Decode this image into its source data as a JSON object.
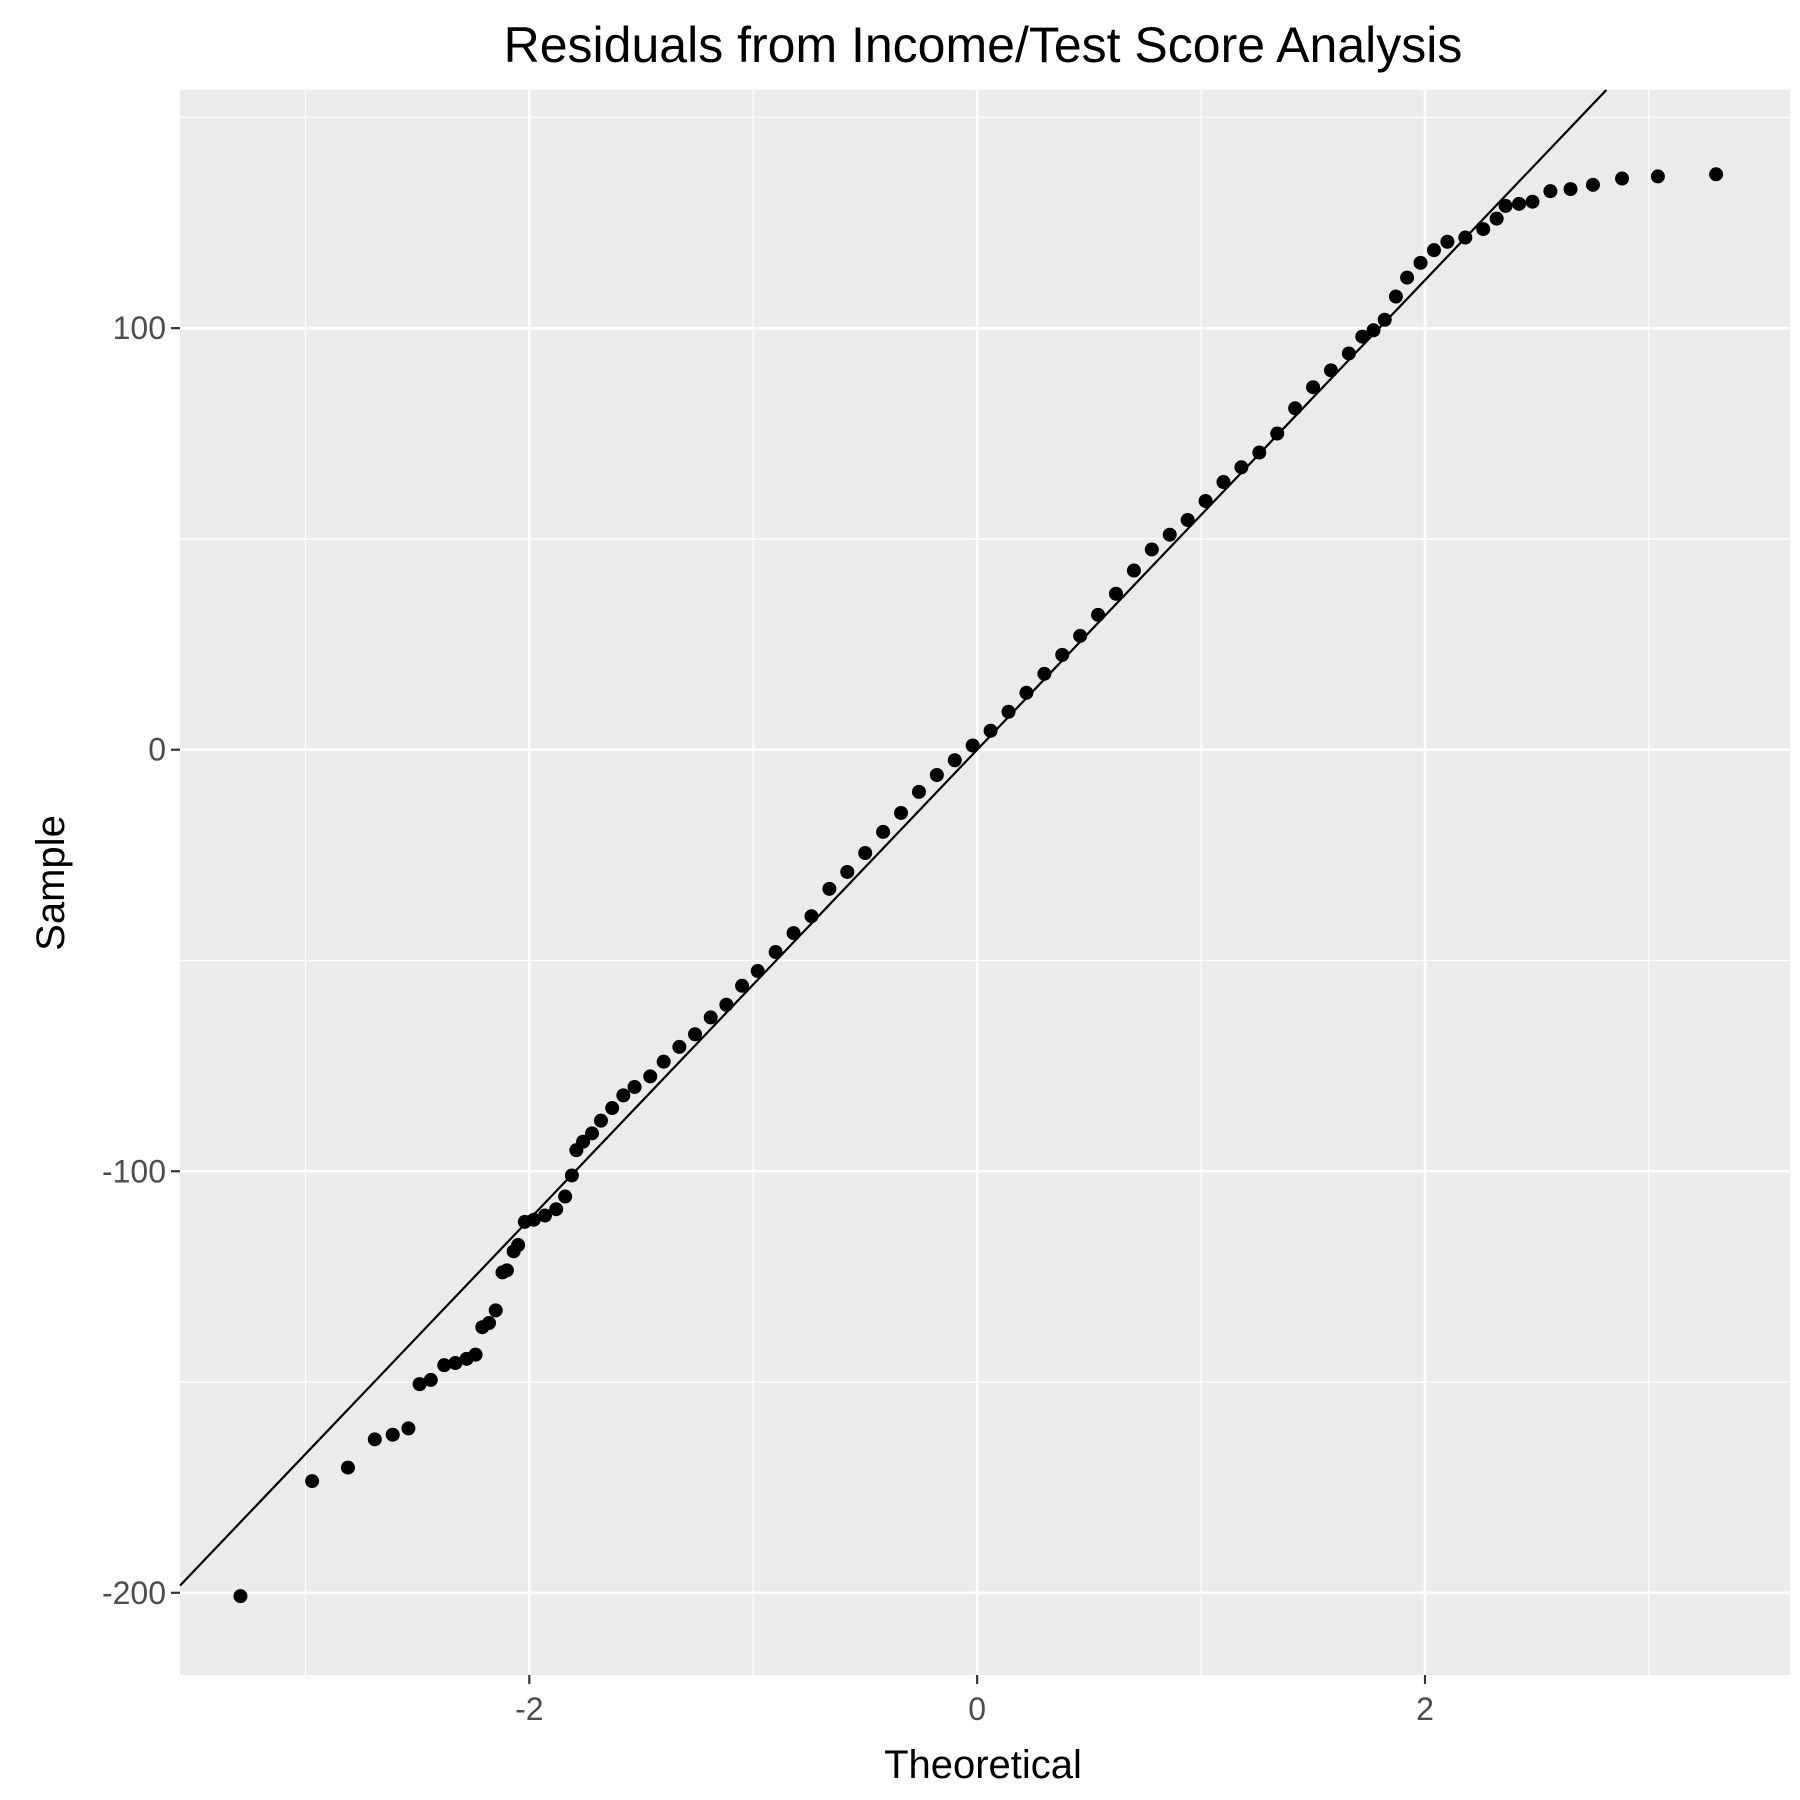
{
  "chart_data": {
    "type": "scatter",
    "title": "Residuals from Income/Test Score Analysis",
    "xlabel": "Theoretical",
    "ylabel": "Sample",
    "xlim": [
      -3.56,
      3.63
    ],
    "ylim": [
      -219.5,
      156.5
    ],
    "x_ticks": [
      -2,
      0,
      2
    ],
    "y_ticks": [
      -200,
      -100,
      0,
      100
    ],
    "grid": true,
    "panel_background": "#ebebeb",
    "grid_color": "#ffffff",
    "point_color": "#000000",
    "line_color": "#000000",
    "reference_line": {
      "intercept": 0,
      "slope": 55.7
    },
    "points": [
      [
        -3.29,
        -200.8
      ],
      [
        -2.97,
        -173.5
      ],
      [
        -2.81,
        -170.3
      ],
      [
        -2.69,
        -163.6
      ],
      [
        -2.61,
        -162.5
      ],
      [
        -2.54,
        -161.0
      ],
      [
        -2.49,
        -150.5
      ],
      [
        -2.44,
        -149.5
      ],
      [
        -2.38,
        -146.0
      ],
      [
        -2.33,
        -145.5
      ],
      [
        -2.28,
        -144.5
      ],
      [
        -2.24,
        -143.5
      ],
      [
        -2.21,
        -137.0
      ],
      [
        -2.18,
        -136.0
      ],
      [
        -2.15,
        -133.0
      ],
      [
        -2.12,
        -124.0
      ],
      [
        -2.1,
        -123.5
      ],
      [
        -2.07,
        -119.0
      ],
      [
        -2.05,
        -117.5
      ],
      [
        -2.02,
        -112.0
      ],
      [
        -1.98,
        -111.5
      ],
      [
        -1.93,
        -110.5
      ],
      [
        -1.88,
        -109.0
      ],
      [
        -1.84,
        -106.0
      ],
      [
        -1.81,
        -101.0
      ],
      [
        -1.79,
        -95.0
      ],
      [
        -1.76,
        -93.0
      ],
      [
        -1.72,
        -91.0
      ],
      [
        -1.68,
        -88.0
      ],
      [
        -1.63,
        -85.0
      ],
      [
        -1.58,
        -82.0
      ],
      [
        -1.53,
        -80.0
      ],
      [
        -1.46,
        -77.5
      ],
      [
        -1.4,
        -74.0
      ],
      [
        -1.33,
        -70.5
      ],
      [
        -1.26,
        -67.5
      ],
      [
        -1.19,
        -63.5
      ],
      [
        -1.12,
        -60.5
      ],
      [
        -1.05,
        -56.0
      ],
      [
        -0.98,
        -52.5
      ],
      [
        -0.9,
        -48.0
      ],
      [
        -0.82,
        -43.5
      ],
      [
        -0.74,
        -39.5
      ],
      [
        -0.66,
        -33.0
      ],
      [
        -0.58,
        -29.0
      ],
      [
        -0.5,
        -24.5
      ],
      [
        -0.42,
        -19.5
      ],
      [
        -0.34,
        -15.0
      ],
      [
        -0.26,
        -10.0
      ],
      [
        -0.18,
        -6.0
      ],
      [
        -0.1,
        -2.5
      ],
      [
        -0.02,
        1.0
      ],
      [
        0.06,
        4.5
      ],
      [
        0.14,
        9.0
      ],
      [
        0.22,
        13.5
      ],
      [
        0.3,
        18.0
      ],
      [
        0.38,
        22.5
      ],
      [
        0.46,
        27.0
      ],
      [
        0.54,
        32.0
      ],
      [
        0.62,
        37.0
      ],
      [
        0.7,
        42.5
      ],
      [
        0.78,
        47.5
      ],
      [
        0.86,
        51.0
      ],
      [
        0.94,
        54.5
      ],
      [
        1.02,
        59.0
      ],
      [
        1.1,
        63.5
      ],
      [
        1.18,
        67.0
      ],
      [
        1.26,
        70.5
      ],
      [
        1.34,
        75.0
      ],
      [
        1.42,
        81.0
      ],
      [
        1.5,
        86.0
      ],
      [
        1.58,
        90.0
      ],
      [
        1.66,
        94.0
      ],
      [
        1.72,
        98.0
      ],
      [
        1.77,
        99.5
      ],
      [
        1.82,
        102.0
      ],
      [
        1.87,
        107.5
      ],
      [
        1.92,
        112.0
      ],
      [
        1.98,
        115.5
      ],
      [
        2.04,
        118.5
      ],
      [
        2.1,
        120.5
      ],
      [
        2.18,
        121.5
      ],
      [
        2.26,
        123.5
      ],
      [
        2.32,
        126.0
      ],
      [
        2.36,
        129.0
      ],
      [
        2.42,
        129.5
      ],
      [
        2.48,
        130.0
      ],
      [
        2.56,
        132.5
      ],
      [
        2.65,
        133.0
      ],
      [
        2.75,
        134.0
      ],
      [
        2.88,
        135.5
      ],
      [
        3.04,
        136.0
      ],
      [
        3.3,
        136.5
      ]
    ]
  }
}
